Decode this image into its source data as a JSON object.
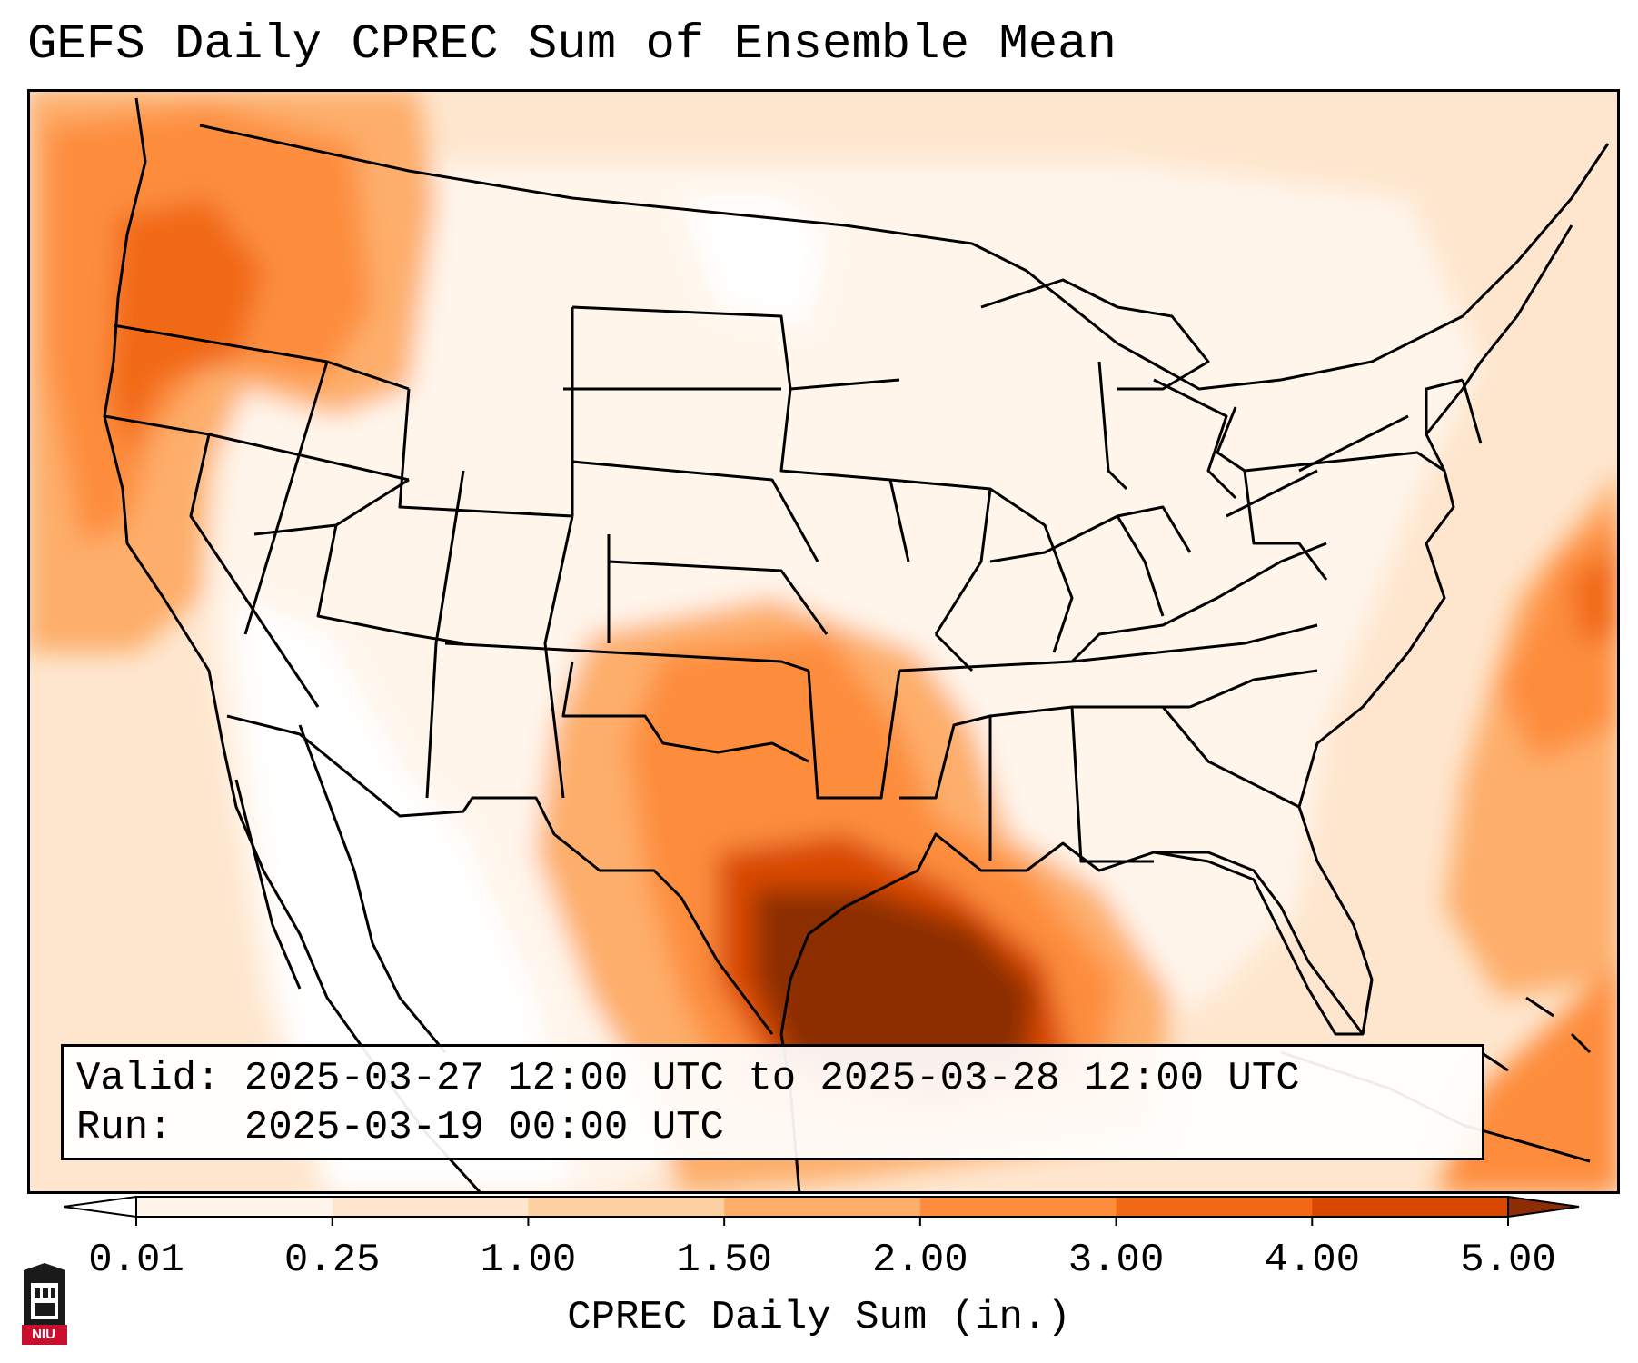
{
  "title": "GEFS Daily CPREC Sum of Ensemble Mean",
  "info": {
    "valid_label": "Valid:",
    "valid_value": "2025-03-27 12:00 UTC to 2025-03-28 12:00 UTC",
    "run_label": "Run:",
    "run_value": "2025-03-19 00:00 UTC"
  },
  "colorbar": {
    "label": "CPREC Daily Sum (in.)",
    "ticks": [
      "0.01",
      "0.25",
      "1.00",
      "1.50",
      "2.00",
      "3.00",
      "4.00",
      "5.00"
    ],
    "colors": [
      "#fff5eb",
      "#fee6ce",
      "#fdd0a2",
      "#fdae6b",
      "#fd8d3c",
      "#f16913",
      "#d94801",
      "#8c2d04"
    ]
  },
  "logo": {
    "text": "NIU"
  },
  "map": {
    "region": "CONUS",
    "legend_placement": "bottom",
    "precip_areas": [
      {
        "region": "Pacific Northwest coast",
        "level": "2.00"
      },
      {
        "region": "Northern California coast",
        "level": "2.00"
      },
      {
        "region": "Southern Plains (Oklahoma / North Texas)",
        "level": "1.50"
      },
      {
        "region": "Texas Gulf Coast / NW Gulf of Mexico",
        "level": "5.00"
      },
      {
        "region": "Western Atlantic offshore",
        "level": "2.00"
      }
    ]
  }
}
